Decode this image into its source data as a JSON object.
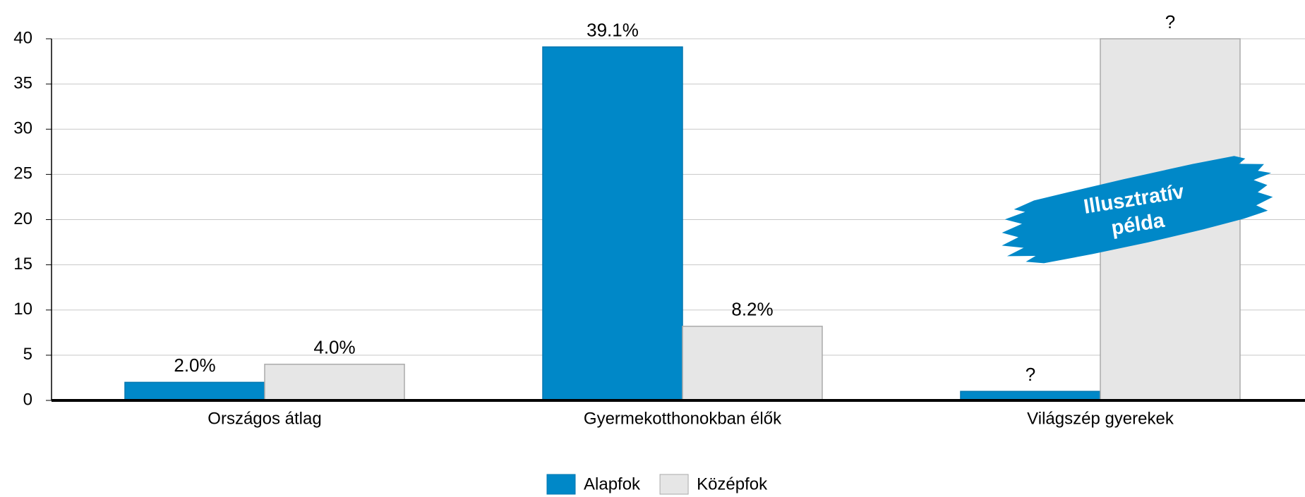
{
  "chart_data": {
    "type": "bar",
    "categories": [
      "Országos átlag",
      "Gyermekotthonokban élők",
      "Világszép gyerekek"
    ],
    "series": [
      {
        "name": "Alapfok",
        "color": "#0088c8",
        "values": [
          2.0,
          39.1,
          1
        ],
        "value_labels": [
          "2.0%",
          "39.1%",
          "?"
        ]
      },
      {
        "name": "Középfok",
        "color": "#e6e6e6",
        "values": [
          4.0,
          8.2,
          40
        ],
        "value_labels": [
          "4.0%",
          "8.2%",
          "?"
        ]
      }
    ],
    "ylim": [
      0,
      40
    ],
    "yticks": [
      0,
      5,
      10,
      15,
      20,
      25,
      30,
      35,
      40
    ],
    "grid": true,
    "legend": "bottom",
    "annotation": [
      "Illusztratív",
      "példa"
    ]
  }
}
